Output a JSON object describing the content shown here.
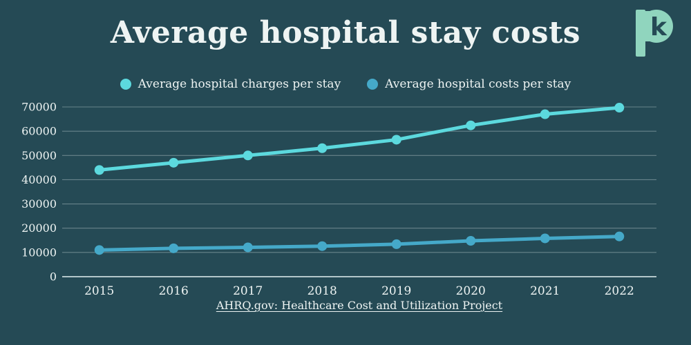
{
  "header": {
    "title": "Average hospital stay costs"
  },
  "logo": {
    "name": "Peterson-KFF logo",
    "letter": "k",
    "color": "#90D5BE"
  },
  "source": {
    "text": "AHRQ.gov: Healthcare Cost and Utilization Project"
  },
  "colors": {
    "background": "#254A55",
    "text": "#EEF4F3",
    "gridline": "rgba(230,242,242,0.35)",
    "axis_line": "rgba(230,242,242,0.85)"
  },
  "chart_data": {
    "type": "line",
    "title": "Average hospital stay costs",
    "x": [
      "2015",
      "2016",
      "2017",
      "2018",
      "2019",
      "2020",
      "2021",
      "2022"
    ],
    "series": [
      {
        "name": "Average hospital charges per stay",
        "color": "#5CD9DE",
        "values": [
          44000,
          47000,
          50000,
          53000,
          56500,
          62400,
          67000,
          69700
        ]
      },
      {
        "name": "Average hospital costs per stay",
        "color": "#45A9C9",
        "values": [
          11000,
          11700,
          12100,
          12600,
          13400,
          14800,
          15800,
          16600
        ]
      }
    ],
    "yticks": [
      0,
      10000,
      20000,
      30000,
      40000,
      50000,
      60000,
      70000
    ],
    "ylim": [
      0,
      70000
    ],
    "xlabel": "",
    "ylabel": "",
    "grid": true,
    "legend_position": "top"
  }
}
